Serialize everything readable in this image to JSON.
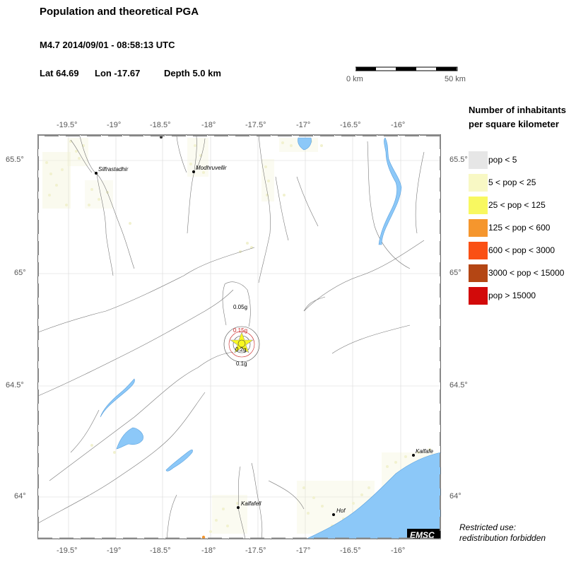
{
  "header": {
    "title": "Population and theoretical PGA",
    "event": "M4.7  2014/09/01 - 08:58:13 UTC",
    "lat": "Lat 64.69",
    "lon": "Lon -17.67",
    "depth": "Depth  5.0 km"
  },
  "scale_bar": {
    "left_label": "0 km",
    "right_label": "50 km"
  },
  "axes": {
    "top_ticks": [
      "-19.5°",
      "-19°",
      "-18.5°",
      "-18°",
      "-17.5°",
      "-17°",
      "-16.5°",
      "-16°"
    ],
    "bottom_ticks": [
      "-19.5°",
      "-19°",
      "-18.5°",
      "-18°",
      "-17.5°",
      "-17°",
      "-16.5°",
      "-16°"
    ],
    "left_ticks": [
      "65.5°",
      "65°",
      "64.5°",
      "64°"
    ],
    "right_ticks": [
      "65.5°",
      "65°",
      "64.5°",
      "64°"
    ]
  },
  "places": [
    {
      "name": "Silfrastadhir"
    },
    {
      "name": "Modhruvellir"
    },
    {
      "name": "Kalfafell"
    },
    {
      "name": "Hof"
    },
    {
      "name": "Kalfafe"
    }
  ],
  "pga_contours": [
    "0.05g",
    "0.15g",
    "0.2g",
    "0.1g"
  ],
  "logo": "EMSC",
  "legend": {
    "title_line1": "Number of inhabitants",
    "title_line2": "per square kilometer",
    "items": [
      {
        "label": "pop < 5",
        "color": "#e6e6e6"
      },
      {
        "label": "5 < pop < 25",
        "color": "#f8f8c4"
      },
      {
        "label": "25 < pop < 125",
        "color": "#f8f860"
      },
      {
        "label": "125 < pop < 600",
        "color": "#f5962d"
      },
      {
        "label": "600 < pop < 3000",
        "color": "#fa5014"
      },
      {
        "label": "3000 < pop < 15000",
        "color": "#b44614"
      },
      {
        "label": "pop > 15000",
        "color": "#d20a0a"
      }
    ]
  },
  "restricted": {
    "line1": "Restricted use:",
    "line2": "redistribution forbidden"
  },
  "colors": {
    "water": "#8cc8f8",
    "river": "#5aa0dc",
    "star": "#f8f820"
  }
}
